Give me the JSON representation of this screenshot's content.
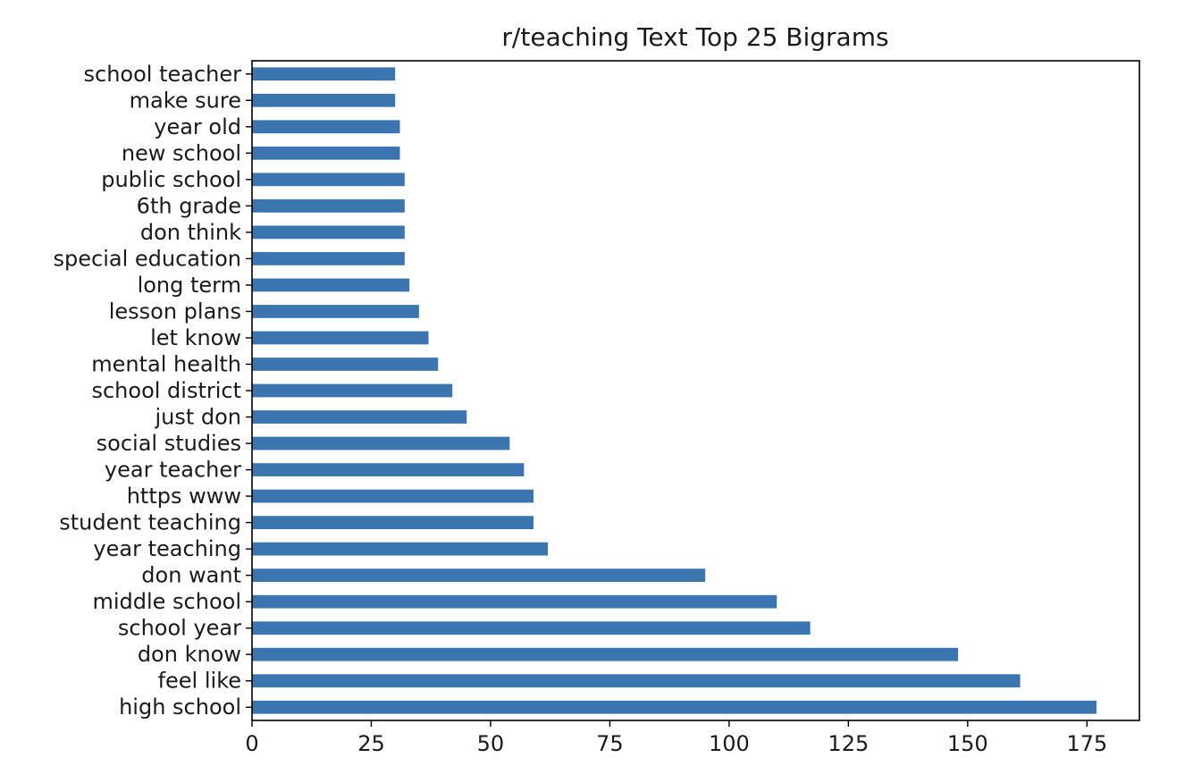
{
  "chart_data": {
    "type": "bar",
    "orientation": "horizontal",
    "title": "r/teaching Text Top 25 Bigrams",
    "xlabel": "",
    "ylabel": "",
    "xlim": [
      0,
      186
    ],
    "xticks": [
      0,
      25,
      50,
      75,
      100,
      125,
      150,
      175
    ],
    "xtick_labels": [
      "0",
      "25",
      "50",
      "75",
      "100",
      "125",
      "150",
      "175"
    ],
    "grid": false,
    "legend": "none",
    "bar_color": "#3b75af",
    "categories": [
      "high school",
      "feel like",
      "don know",
      "school year",
      "middle school",
      "don want",
      "year teaching",
      "student teaching",
      "https www",
      "year teacher",
      "social studies",
      "just don",
      "school district",
      "mental health",
      "let know",
      "lesson plans",
      "long term",
      "special education",
      "don think",
      "6th grade",
      "public school",
      "new school",
      "year old",
      "make sure",
      "school teacher"
    ],
    "values": [
      177,
      161,
      148,
      117,
      110,
      95,
      62,
      59,
      59,
      57,
      54,
      45,
      42,
      39,
      37,
      35,
      33,
      32,
      32,
      32,
      32,
      31,
      31,
      30,
      30
    ]
  }
}
